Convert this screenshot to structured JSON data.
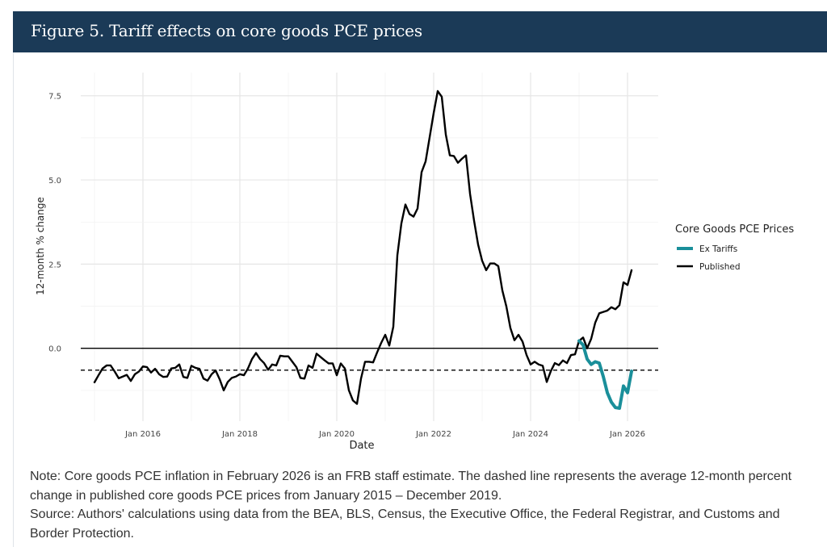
{
  "figure": {
    "title": "Figure 5. Tariff effects on core goods PCE prices",
    "note": "Note: Core goods PCE inflation in February 2026 is an FRB staff estimate. The dashed line represents the average 12-month percent change in published core goods PCE prices from January 2015 – December 2019.",
    "source": "Source: Authors' calculations using data from the BEA, BLS, Census, the Executive Office, the Federal Registrar, and Customs and Border Protection.",
    "header_color": "#1b3a57"
  },
  "chart_data": {
    "type": "line",
    "xlabel": "Date",
    "ylabel": "12-month % change",
    "x_ticks": [
      "Jan 2016",
      "Jan 2018",
      "Jan 2020",
      "Jan 2022",
      "Jan 2024",
      "Jan 2026"
    ],
    "x_tick_dates": [
      "2016-01",
      "2018-01",
      "2020-01",
      "2022-01",
      "2024-01",
      "2026-01"
    ],
    "y_ticks": [
      "0.0",
      "2.5",
      "5.0",
      "7.5"
    ],
    "y_tick_values": [
      0,
      2.5,
      5,
      7.5
    ],
    "xlim": [
      "2014-09",
      "2026-08"
    ],
    "ylim": [
      -2.1,
      8.1
    ],
    "grid": true,
    "legend": {
      "title": "Core Goods PCE Prices",
      "placement": "right"
    },
    "reference_lines": [
      {
        "y": 0,
        "style": "solid"
      },
      {
        "y": -0.65,
        "style": "dashed"
      }
    ],
    "series": [
      {
        "name": "Ex Tariffs",
        "color": "#1a8f9a",
        "x": [
          "2025-01",
          "2025-02",
          "2025-03",
          "2025-04",
          "2025-05",
          "2025-06",
          "2025-07",
          "2025-08",
          "2025-09",
          "2025-10",
          "2025-11",
          "2025-12",
          "2026-01",
          "2026-02"
        ],
        "values": [
          0.22,
          0.1,
          -0.32,
          -0.48,
          -0.4,
          -0.44,
          -0.84,
          -1.32,
          -1.6,
          -1.76,
          -1.78,
          -1.12,
          -1.32,
          -0.68
        ]
      },
      {
        "name": "Published",
        "color": "#000000",
        "x": [
          "2015-01",
          "2015-02",
          "2015-03",
          "2015-04",
          "2015-05",
          "2015-06",
          "2015-07",
          "2015-08",
          "2015-09",
          "2015-10",
          "2015-11",
          "2015-12",
          "2016-01",
          "2016-02",
          "2016-03",
          "2016-04",
          "2016-05",
          "2016-06",
          "2016-07",
          "2016-08",
          "2016-09",
          "2016-10",
          "2016-11",
          "2016-12",
          "2017-01",
          "2017-02",
          "2017-03",
          "2017-04",
          "2017-05",
          "2017-06",
          "2017-07",
          "2017-08",
          "2017-09",
          "2017-10",
          "2017-11",
          "2017-12",
          "2018-01",
          "2018-02",
          "2018-03",
          "2018-04",
          "2018-05",
          "2018-06",
          "2018-07",
          "2018-08",
          "2018-09",
          "2018-10",
          "2018-11",
          "2018-12",
          "2019-01",
          "2019-02",
          "2019-03",
          "2019-04",
          "2019-05",
          "2019-06",
          "2019-07",
          "2019-08",
          "2019-09",
          "2019-10",
          "2019-11",
          "2019-12",
          "2020-01",
          "2020-02",
          "2020-03",
          "2020-04",
          "2020-05",
          "2020-06",
          "2020-07",
          "2020-08",
          "2020-09",
          "2020-10",
          "2020-11",
          "2020-12",
          "2021-01",
          "2021-02",
          "2021-03",
          "2021-04",
          "2021-05",
          "2021-06",
          "2021-07",
          "2021-08",
          "2021-09",
          "2021-10",
          "2021-11",
          "2021-12",
          "2022-01",
          "2022-02",
          "2022-03",
          "2022-04",
          "2022-05",
          "2022-06",
          "2022-07",
          "2022-08",
          "2022-09",
          "2022-10",
          "2022-11",
          "2022-12",
          "2023-01",
          "2023-02",
          "2023-03",
          "2023-04",
          "2023-05",
          "2023-06",
          "2023-07",
          "2023-08",
          "2023-09",
          "2023-10",
          "2023-11",
          "2023-12",
          "2024-01",
          "2024-02",
          "2024-03",
          "2024-04",
          "2024-05",
          "2024-06",
          "2024-07",
          "2024-08",
          "2024-09",
          "2024-10",
          "2024-11",
          "2024-12",
          "2025-01",
          "2025-02",
          "2025-03",
          "2025-04",
          "2025-05",
          "2025-06",
          "2025-07",
          "2025-08",
          "2025-09",
          "2025-10",
          "2025-11",
          "2025-12",
          "2026-01",
          "2026-02"
        ],
        "values": [
          -1.01,
          -0.8,
          -0.6,
          -0.51,
          -0.51,
          -0.69,
          -0.89,
          -0.84,
          -0.79,
          -0.97,
          -0.77,
          -0.69,
          -0.54,
          -0.56,
          -0.72,
          -0.61,
          -0.77,
          -0.85,
          -0.84,
          -0.6,
          -0.58,
          -0.48,
          -0.85,
          -0.88,
          -0.52,
          -0.58,
          -0.61,
          -0.9,
          -0.96,
          -0.77,
          -0.66,
          -0.92,
          -1.25,
          -1.0,
          -0.88,
          -0.84,
          -0.77,
          -0.8,
          -0.6,
          -0.32,
          -0.14,
          -0.32,
          -0.44,
          -0.64,
          -0.48,
          -0.51,
          -0.22,
          -0.24,
          -0.24,
          -0.4,
          -0.56,
          -0.88,
          -0.9,
          -0.51,
          -0.58,
          -0.16,
          -0.26,
          -0.36,
          -0.45,
          -0.45,
          -0.8,
          -0.45,
          -0.6,
          -1.25,
          -1.55,
          -1.65,
          -0.9,
          -0.4,
          -0.4,
          -0.42,
          -0.12,
          0.16,
          0.4,
          0.08,
          0.64,
          2.76,
          3.71,
          4.27,
          3.99,
          3.91,
          4.15,
          5.23,
          5.55,
          6.27,
          6.99,
          7.64,
          7.47,
          6.35,
          5.73,
          5.71,
          5.51,
          5.63,
          5.73,
          4.59,
          3.79,
          3.08,
          2.6,
          2.32,
          2.52,
          2.52,
          2.44,
          1.72,
          1.24,
          0.6,
          0.24,
          0.4,
          0.2,
          -0.2,
          -0.48,
          -0.4,
          -0.48,
          -0.52,
          -1.0,
          -0.68,
          -0.44,
          -0.5,
          -0.36,
          -0.44,
          -0.2,
          -0.18,
          0.22,
          0.32,
          0.0,
          0.28,
          0.76,
          1.04,
          1.08,
          1.12,
          1.22,
          1.16,
          1.28,
          1.96,
          1.88,
          2.32
        ]
      }
    ]
  }
}
